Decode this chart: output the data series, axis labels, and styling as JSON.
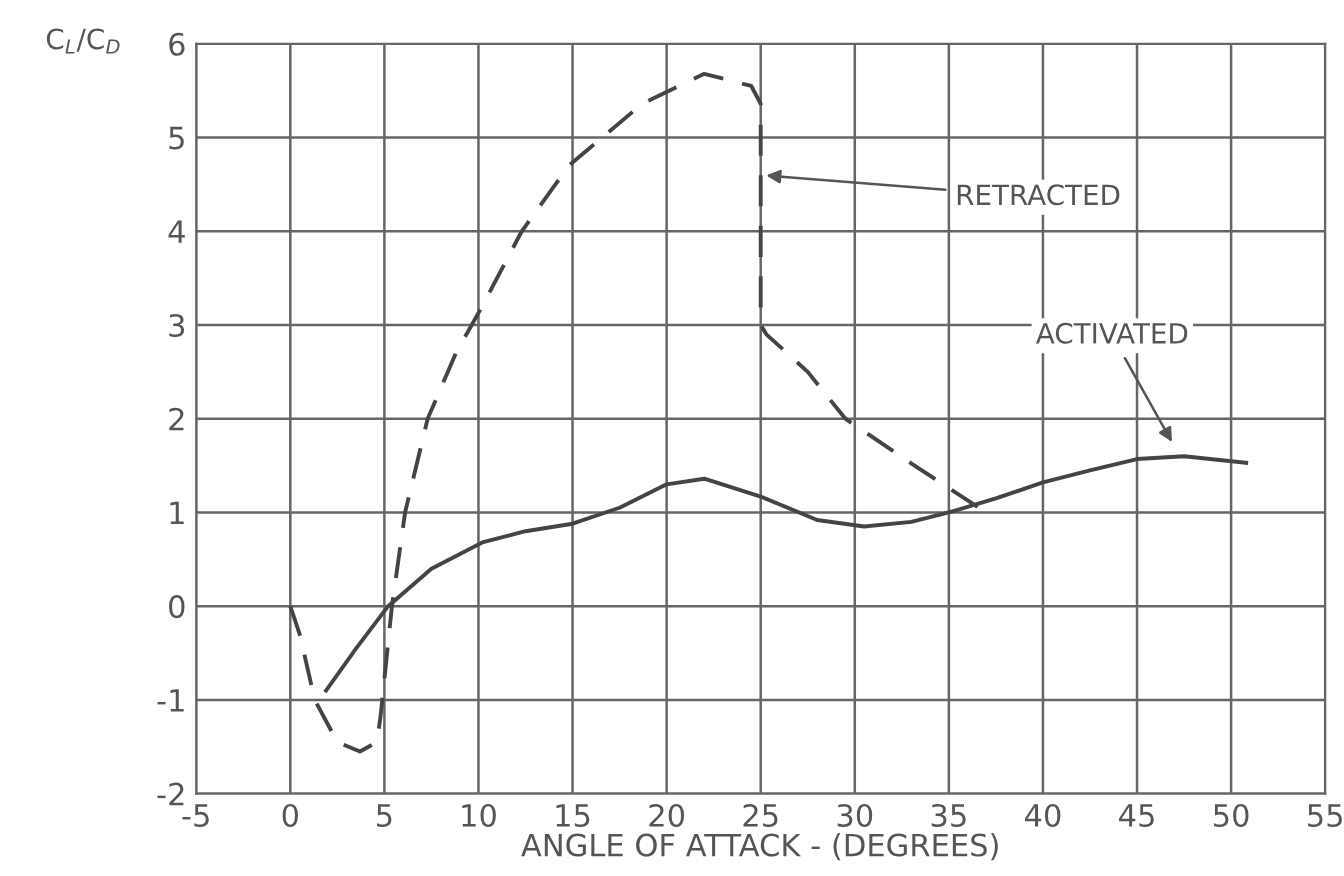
{
  "chart_data": {
    "type": "line",
    "xlabel": "ANGLE OF ATTACK - (DEGREES)",
    "ylabel": "C$_{L}$/C$_{D}$",
    "xlim": [
      -5,
      55
    ],
    "xticks": [
      -5,
      0,
      5,
      10,
      15,
      20,
      25,
      30,
      35,
      40,
      45,
      50,
      55
    ],
    "ylim": [
      -2,
      6
    ],
    "yticks": [
      -2,
      -1,
      0,
      1,
      2,
      3,
      4,
      5,
      6
    ],
    "grid": true,
    "series": [
      {
        "color": "#444444",
        "line_style": "dashed",
        "x": [
          0,
          0.5,
          1.3,
          2.5,
          3.7,
          4.6,
          4.8,
          5.4,
          6.1,
          7.3,
          8.8,
          10.2,
          12.3,
          14.8,
          18.7,
          22,
          24.5,
          25,
          25,
          25.3,
          27.5,
          29.5,
          33.4,
          37.3
        ],
        "values": [
          0,
          -0.3,
          -1.0,
          -1.45,
          -1.55,
          -1.45,
          -1.17,
          0,
          1.0,
          2.0,
          2.7,
          3.2,
          4.0,
          4.7,
          5.36,
          5.68,
          5.55,
          5.36,
          3.0,
          2.9,
          2.5,
          2.0,
          1.47,
          0.96
        ]
      },
      {
        "color": "#444444",
        "line_style": "solid",
        "x": [
          1.9,
          3.5,
          5.2,
          7.5,
          10.2,
          12.5,
          15,
          17.5,
          20,
          22,
          25,
          28,
          30.5,
          33,
          35,
          37.5,
          40,
          42.5,
          45,
          47.5,
          50.8
        ],
        "values": [
          -0.9,
          -0.45,
          0,
          0.4,
          0.68,
          0.8,
          0.88,
          1.05,
          1.3,
          1.36,
          1.17,
          0.92,
          0.85,
          0.9,
          1.0,
          1.15,
          1.32,
          1.45,
          1.57,
          1.6,
          1.53
        ]
      }
    ],
    "annotations": [
      {
        "text": "RETRACTED",
        "x": 25,
        "y": 4.6
      },
      {
        "text": "ACTIVATED",
        "x": 47,
        "y": 1.7
      }
    ]
  }
}
